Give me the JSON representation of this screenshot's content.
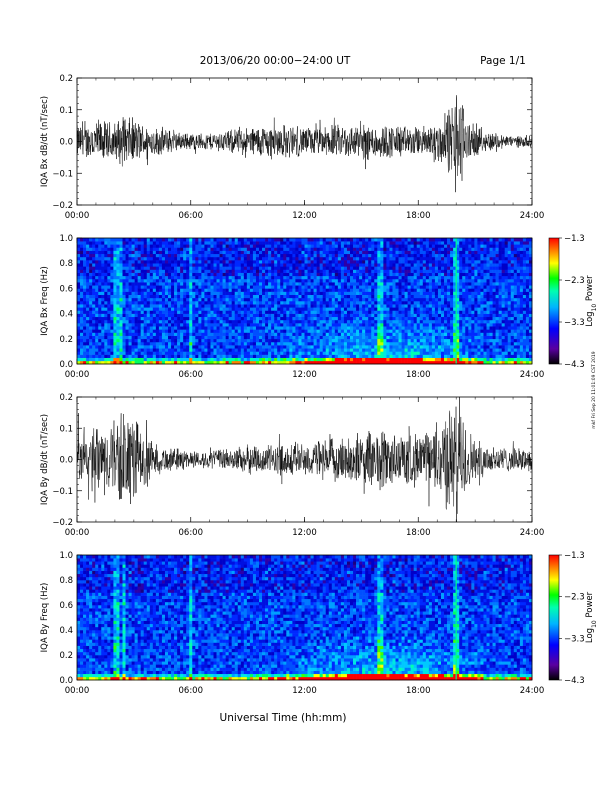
{
  "header": {
    "title": "2013/06/20  00:00−24:00 UT",
    "page": "Page 1/1"
  },
  "footer": {
    "xlabel": "Universal Time (hh:mm)"
  },
  "side_stamp": "mkf Fri Sep 20 11:01:09 CST 2019",
  "chart_data": [
    {
      "type": "line",
      "ylabel": "IQA Bx dB/dt (nT/sec)",
      "ylim": [
        -0.2,
        0.2
      ],
      "yticks": [
        "0.2",
        "0.1",
        "0.0",
        "−0.1",
        "−0.2"
      ],
      "xticks": [
        "00:00",
        "06:00",
        "12:00",
        "18:00",
        "24:00"
      ],
      "xlim_hours": [
        0,
        24
      ],
      "envelope": {
        "hours": [
          0,
          0.5,
          1,
          1.5,
          2,
          2.5,
          3,
          3.5,
          4,
          4.5,
          5,
          5.5,
          6,
          7,
          8,
          9,
          10,
          11,
          12,
          13,
          14,
          15,
          15.5,
          16,
          16.5,
          17,
          17.5,
          18,
          18.5,
          19,
          19.5,
          19.8,
          20,
          20.3,
          20.6,
          21,
          22,
          23,
          24
        ],
        "amplitude": [
          0.06,
          0.06,
          0.08,
          0.07,
          0.07,
          0.09,
          0.08,
          0.06,
          0.05,
          0.05,
          0.04,
          0.03,
          0.03,
          0.03,
          0.04,
          0.05,
          0.06,
          0.06,
          0.05,
          0.05,
          0.06,
          0.06,
          0.07,
          0.06,
          0.06,
          0.06,
          0.05,
          0.05,
          0.06,
          0.07,
          0.1,
          0.15,
          0.2,
          0.15,
          0.08,
          0.05,
          0.03,
          0.02,
          0.02
        ]
      }
    },
    {
      "type": "heatmap",
      "ylabel": "IQA Bx Freq (Hz)",
      "ylim": [
        0.0,
        1.0
      ],
      "yticks": [
        "1.0",
        "0.8",
        "0.6",
        "0.4",
        "0.2",
        "0.0"
      ],
      "xticks": [
        "00:00",
        "06:00",
        "12:00",
        "18:00",
        "24:00"
      ],
      "colorbar": {
        "label": "Log10 Power",
        "label_base": "Log",
        "label_sub": "10",
        "label_rest": " Power",
        "range": [
          -4.3,
          -1.3
        ],
        "ticks": [
          "−1.3",
          "−2.3",
          "−3.3",
          "−4.3"
        ]
      },
      "vertical_features_hours": [
        2.1,
        2.3,
        6.0,
        16.0,
        20.0
      ],
      "enhanced_band_hours": [
        9.5,
        21.5
      ]
    },
    {
      "type": "line",
      "ylabel": "IQA By dB/dt (nT/sec)",
      "ylim": [
        -0.2,
        0.2
      ],
      "yticks": [
        "0.2",
        "0.1",
        "0.0",
        "−0.1",
        "−0.2"
      ],
      "xticks": [
        "00:00",
        "06:00",
        "12:00",
        "18:00",
        "24:00"
      ],
      "xlim_hours": [
        0,
        24
      ],
      "envelope": {
        "hours": [
          0,
          0.5,
          1,
          1.5,
          2,
          2.5,
          3,
          3.5,
          4,
          4.5,
          5,
          5.5,
          6,
          7,
          8,
          9,
          10,
          11,
          12,
          13,
          14,
          15,
          15.5,
          16,
          16.5,
          17,
          17.5,
          18,
          18.5,
          19,
          19.5,
          19.8,
          20,
          20.3,
          20.6,
          21,
          22,
          23,
          24
        ],
        "amplitude": [
          0.1,
          0.08,
          0.12,
          0.11,
          0.15,
          0.18,
          0.16,
          0.1,
          0.06,
          0.05,
          0.04,
          0.04,
          0.03,
          0.03,
          0.04,
          0.05,
          0.05,
          0.06,
          0.06,
          0.07,
          0.08,
          0.09,
          0.1,
          0.12,
          0.1,
          0.09,
          0.1,
          0.09,
          0.1,
          0.12,
          0.18,
          0.2,
          0.2,
          0.18,
          0.12,
          0.07,
          0.05,
          0.04,
          0.04
        ]
      }
    },
    {
      "type": "heatmap",
      "ylabel": "IQA By Freq (Hz)",
      "ylim": [
        0.0,
        1.0
      ],
      "yticks": [
        "1.0",
        "0.8",
        "0.6",
        "0.4",
        "0.2",
        "0.0"
      ],
      "xticks": [
        "00:00",
        "06:00",
        "12:00",
        "18:00",
        "24:00"
      ],
      "colorbar": {
        "label": "Log10 Power",
        "label_base": "Log",
        "label_sub": "10",
        "label_rest": " Power",
        "range": [
          -4.3,
          -1.3
        ],
        "ticks": [
          "−1.3",
          "−2.3",
          "−3.3",
          "−4.3"
        ]
      },
      "vertical_features_hours": [
        2.1,
        2.5,
        6.0,
        16.0,
        20.0
      ],
      "enhanced_band_hours": [
        9.5,
        21.5
      ]
    }
  ]
}
